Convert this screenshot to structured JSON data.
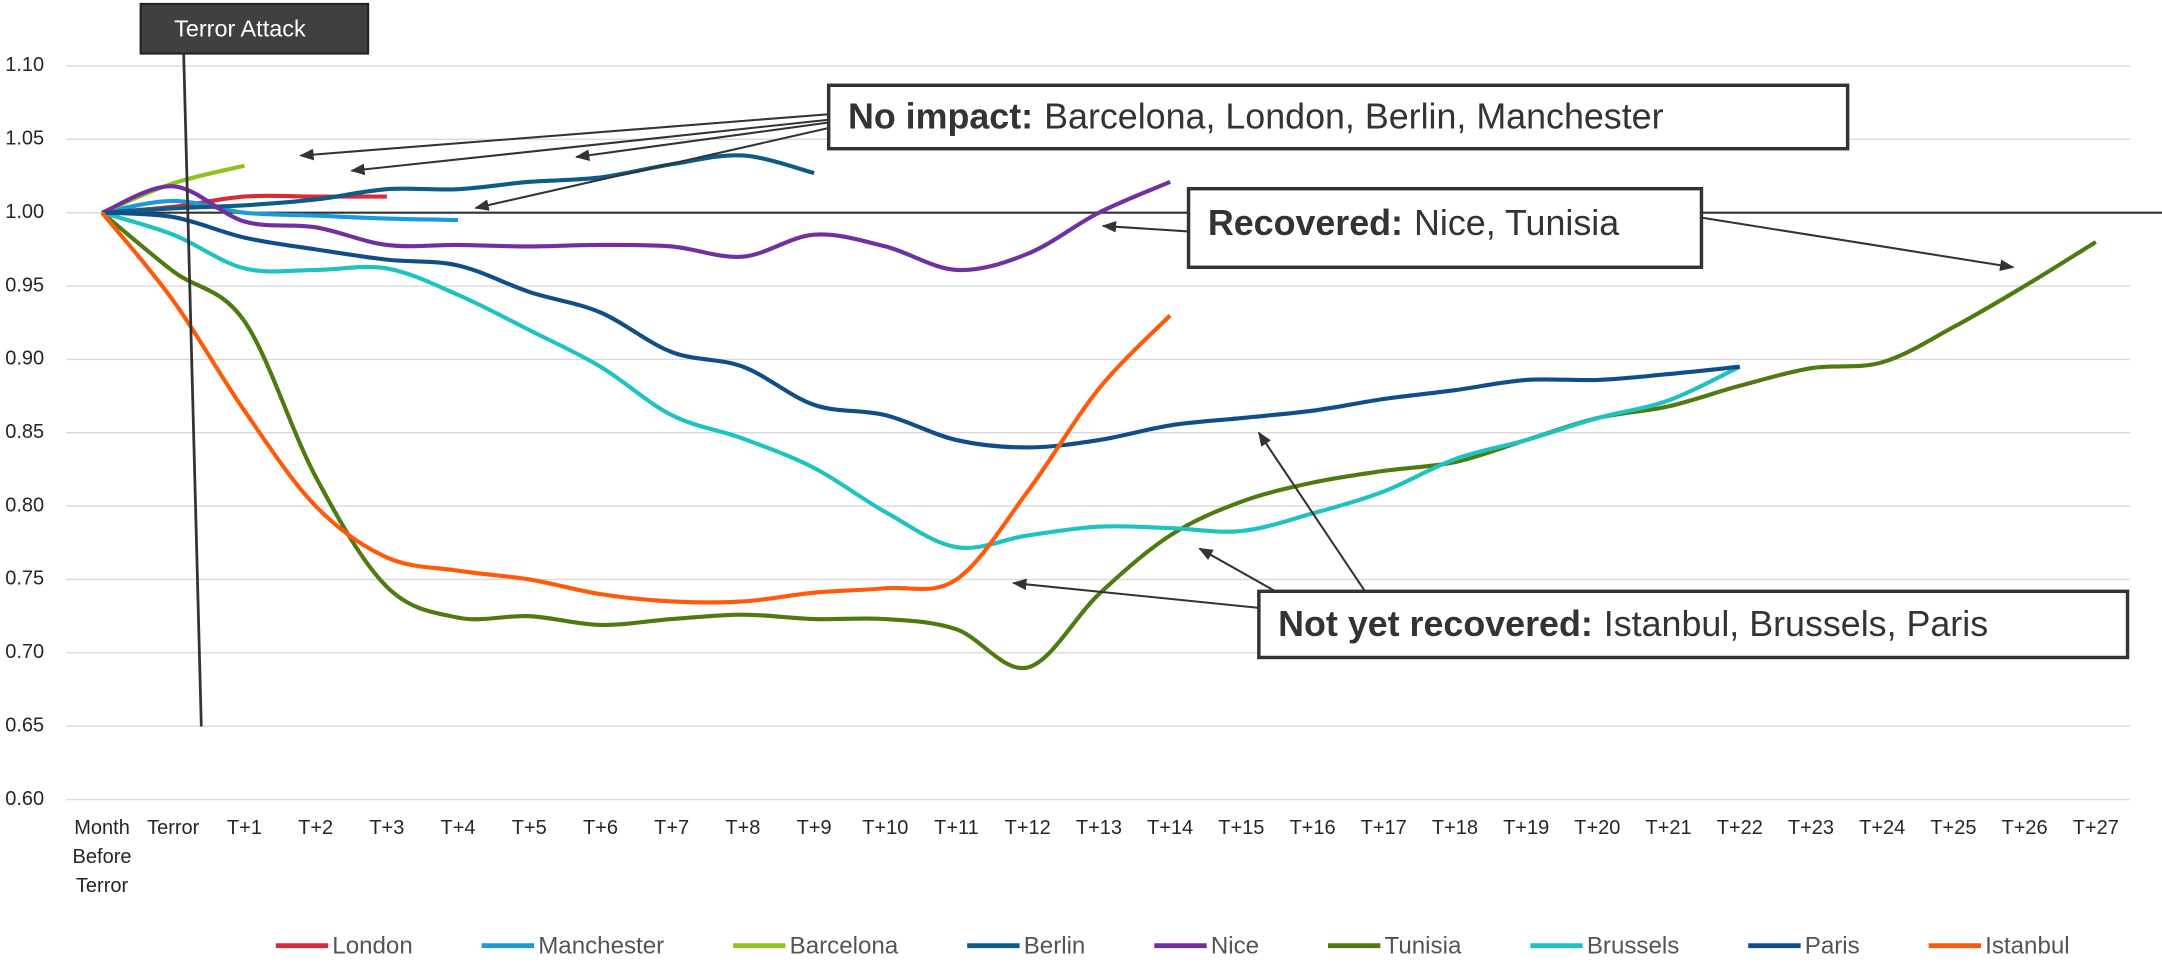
{
  "chart_data": {
    "type": "line",
    "categories": [
      "Month Before Terror",
      "Terror",
      "T+1",
      "T+2",
      "T+3",
      "T+4",
      "T+5",
      "T+6",
      "T+7",
      "T+8",
      "T+9",
      "T+10",
      "T+11",
      "T+12",
      "T+13",
      "T+14",
      "T+15",
      "T+16",
      "T+17",
      "T+18",
      "T+19",
      "T+20",
      "T+21",
      "T+22",
      "T+23",
      "T+24",
      "T+25",
      "T+26",
      "T+27"
    ],
    "ylim": [
      0.6,
      1.1
    ],
    "yticks": [
      {
        "value": 0.6,
        "label": "0.60"
      },
      {
        "value": 0.65,
        "label": "0.65"
      },
      {
        "value": 0.7,
        "label": "0.70"
      },
      {
        "value": 0.75,
        "label": "0.75"
      },
      {
        "value": 0.8,
        "label": "0.80"
      },
      {
        "value": 0.85,
        "label": "0.85"
      },
      {
        "value": 0.9,
        "label": "0.90"
      },
      {
        "value": 0.95,
        "label": "0.95"
      },
      {
        "value": 1.0,
        "label": "1.00"
      },
      {
        "value": 1.05,
        "label": "1.05"
      },
      {
        "value": 1.1,
        "label": "1.10"
      }
    ],
    "grid": true,
    "reference_line": 1,
    "legend": "bottom",
    "series": [
      {
        "name": "London",
        "color": "#d62c3a",
        "values": [
          1.0,
          1.004,
          1.011,
          1.011,
          1.011,
          null,
          null,
          null,
          null,
          null,
          null,
          null,
          null,
          null,
          null,
          null,
          null,
          null,
          null,
          null,
          null,
          null,
          null,
          null,
          null,
          null,
          null,
          null,
          null
        ]
      },
      {
        "name": "Manchester",
        "color": "#1a9ad6",
        "values": [
          1.0,
          1.008,
          1.0,
          0.998,
          0.996,
          0.995,
          null,
          null,
          null,
          null,
          null,
          null,
          null,
          null,
          null,
          null,
          null,
          null,
          null,
          null,
          null,
          null,
          null,
          null,
          null,
          null,
          null,
          null,
          null
        ]
      },
      {
        "name": "Barcelona",
        "color": "#8dc21f",
        "values": [
          1.0,
          1.02,
          1.032,
          null,
          null,
          null,
          null,
          null,
          null,
          null,
          null,
          null,
          null,
          null,
          null,
          null,
          null,
          null,
          null,
          null,
          null,
          null,
          null,
          null,
          null,
          null,
          null,
          null,
          null
        ]
      },
      {
        "name": "Berlin",
        "color": "#0d5c87",
        "values": [
          1.0,
          1.003,
          1.005,
          1.009,
          1.016,
          1.016,
          1.021,
          1.024,
          1.033,
          1.039,
          1.027,
          null,
          null,
          null,
          null,
          null,
          null,
          null,
          null,
          null,
          null,
          null,
          null,
          null,
          null,
          null,
          null,
          null,
          null
        ]
      },
      {
        "name": "Nice",
        "color": "#7030a0",
        "values": [
          1.0,
          1.018,
          0.994,
          0.99,
          0.978,
          0.978,
          0.977,
          0.978,
          0.977,
          0.97,
          0.985,
          0.977,
          0.961,
          0.972,
          1.0,
          1.021,
          null,
          null,
          null,
          null,
          null,
          null,
          null,
          null,
          null,
          null,
          null,
          null,
          null
        ]
      },
      {
        "name": "Tunisia",
        "color": "#4e7a10",
        "values": [
          1.0,
          0.96,
          0.926,
          0.82,
          0.745,
          0.724,
          0.725,
          0.719,
          0.723,
          0.726,
          0.723,
          0.723,
          0.716,
          0.69,
          0.74,
          0.78,
          0.803,
          0.816,
          0.824,
          0.83,
          0.845,
          0.86,
          0.868,
          0.882,
          0.894,
          0.898,
          0.922,
          0.95,
          0.98
        ]
      },
      {
        "name": "Brussels",
        "color": "#1ec2c2",
        "values": [
          1.0,
          0.985,
          0.962,
          0.961,
          0.962,
          0.944,
          0.92,
          0.895,
          0.862,
          0.846,
          0.826,
          0.796,
          0.772,
          0.78,
          0.786,
          0.785,
          0.783,
          0.795,
          0.81,
          0.832,
          0.845,
          0.86,
          0.872,
          0.895,
          null,
          null,
          null,
          null,
          null
        ]
      },
      {
        "name": "Paris",
        "color": "#104e8b",
        "values": [
          1.0,
          0.997,
          0.983,
          0.975,
          0.968,
          0.964,
          0.946,
          0.932,
          0.905,
          0.895,
          0.869,
          0.862,
          0.845,
          0.84,
          0.845,
          0.855,
          0.86,
          0.865,
          0.873,
          0.879,
          0.886,
          0.886,
          0.89,
          0.895,
          null,
          null,
          null,
          null,
          null
        ]
      },
      {
        "name": "Istanbul",
        "color": "#ff5a0a",
        "values": [
          1.0,
          0.94,
          0.865,
          0.8,
          0.765,
          0.756,
          0.75,
          0.74,
          0.735,
          0.735,
          0.741,
          0.744,
          0.75,
          0.81,
          0.88,
          0.93,
          null,
          null,
          null,
          null,
          null,
          null,
          null,
          null,
          null,
          null,
          null,
          null,
          null
        ]
      }
    ],
    "annotations": {
      "terror_attack": "Terror Attack",
      "no_impact": {
        "bold": "No impact:",
        "text": "Barcelona, London, Berlin, Manchester"
      },
      "recovered": {
        "bold": "Recovered:",
        "text": "Nice, Tunisia"
      },
      "not_yet": {
        "bold": "Not yet recovered:",
        "text": "Istanbul, Brussels, Paris"
      }
    }
  }
}
